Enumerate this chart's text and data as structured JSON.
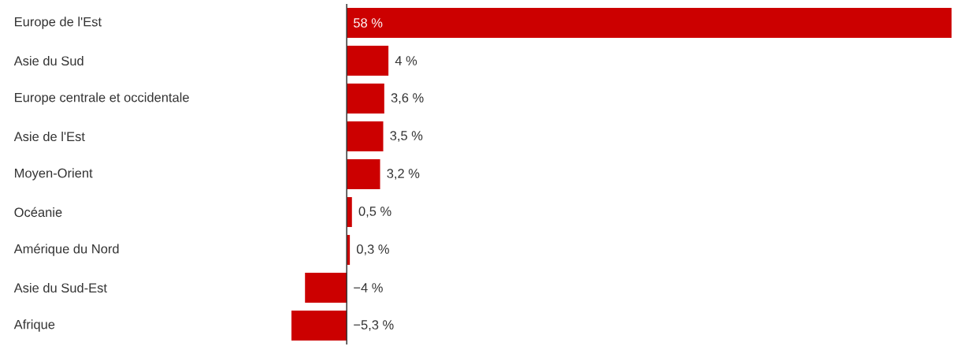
{
  "chart_data": {
    "type": "bar",
    "orientation": "horizontal",
    "color": "#cc0000",
    "xlim": [
      -5.3,
      58
    ],
    "categories": [
      "Europe de l'Est",
      "Asie du Sud",
      "Europe centrale et occidentale",
      "Asie de l'Est",
      "Moyen-Orient",
      "Océanie",
      "Amérique du Nord",
      "Asie du Sud-Est",
      "Afrique"
    ],
    "values": [
      58,
      4,
      3.6,
      3.5,
      3.2,
      0.5,
      0.3,
      -4,
      -5.3
    ],
    "value_labels": [
      "58 %",
      "4 %",
      "3,6 %",
      "3,5 %",
      "3,2 %",
      "0,5 %",
      "0,3 %",
      "−4 %",
      "−5,3 %"
    ]
  }
}
